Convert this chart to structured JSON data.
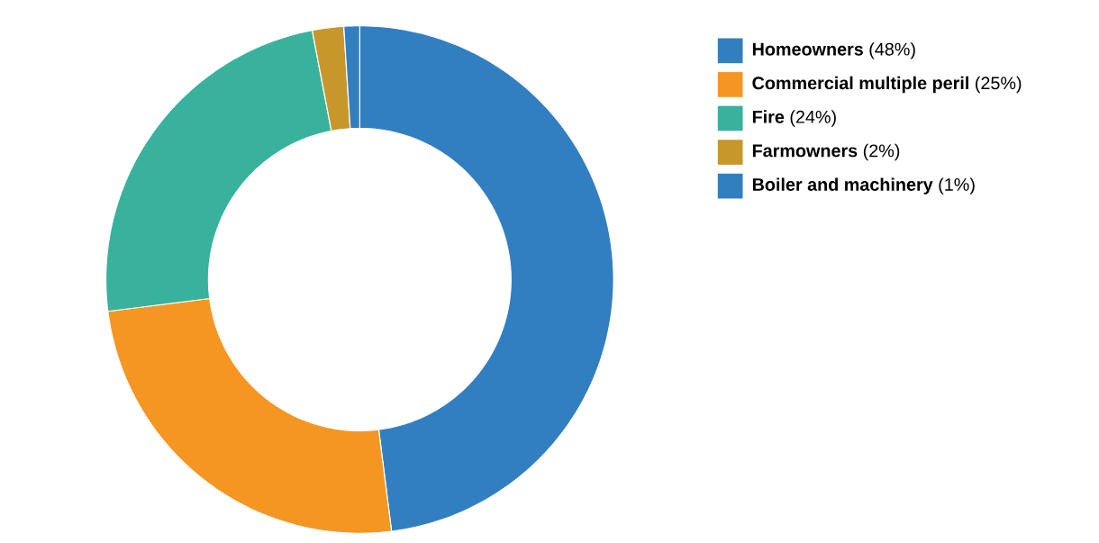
{
  "chart_data": {
    "type": "donut",
    "categories": [
      "**Homeowners** (48%)",
      "**Commercial multiple peril** (25%)",
      "**Fire** (24%)",
      "**Farmowners** (2%)",
      "**Boiler and machinery** (1%)"
    ],
    "values": [
      48,
      25,
      24,
      2,
      1
    ],
    "colors": [
      "#317fc0",
      "#f59623",
      "#38b29c",
      "#c8972b",
      "#317fc0"
    ],
    "legend": "top right"
  }
}
